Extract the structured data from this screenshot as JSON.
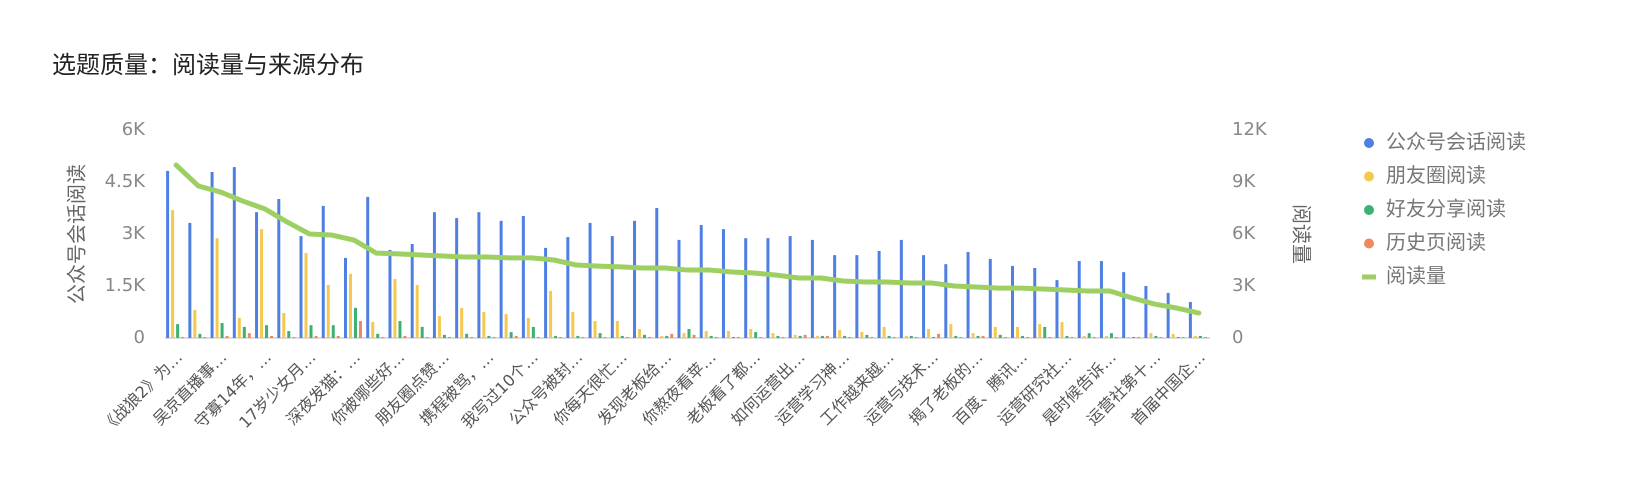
{
  "chart_data": {
    "type": "bar",
    "title": "选题质量：阅读量与来源分布",
    "y_label": "公众号会话阅读",
    "y2_label": "阅读量",
    "categories": [
      "《战狼2》为…",
      null,
      "吴京直播事…",
      null,
      "守寡14年，…",
      null,
      "17岁少女月…",
      null,
      "深夜发猫：…",
      null,
      "你被哪些好…",
      null,
      "朋友圈点赞…",
      null,
      "携程被骂，…",
      null,
      "我写过10个…",
      null,
      "公众号被封…",
      null,
      "你每天很忙…",
      null,
      "发现老板给…",
      null,
      "你熬夜看苹…",
      null,
      "老板看了都…",
      null,
      "如何运营出…",
      null,
      "运营学习神…",
      null,
      "工作越来越…",
      null,
      "运营与技术…",
      null,
      "揭了老板的…",
      null,
      "百度、腾讯…",
      null,
      "运营研究社…",
      null,
      "是时候告诉…",
      null,
      "运营社第十…",
      null,
      "首届中国企…"
    ],
    "ylim": [
      0,
      6000
    ],
    "yticks": [
      {
        "value": 0,
        "label": "0"
      },
      {
        "value": 1500,
        "label": "1.5K"
      },
      {
        "value": 3000,
        "label": "3K"
      },
      {
        "value": 4500,
        "label": "4.5K"
      },
      {
        "value": 6000,
        "label": "6K"
      }
    ],
    "y2lim": [
      0,
      12000
    ],
    "y2ticks": [
      {
        "value": 0,
        "label": "0"
      },
      {
        "value": 3000,
        "label": "3K"
      },
      {
        "value": 6000,
        "label": "6K"
      },
      {
        "value": 9000,
        "label": "9K"
      },
      {
        "value": 12000,
        "label": "12K"
      }
    ],
    "legend": "right",
    "series": [
      {
        "name": "公众号会话阅读",
        "color": "#4f7fe3",
        "type": "bar",
        "values": [
          4820,
          3320,
          4790,
          4930,
          3630,
          4010,
          2940,
          3810,
          2310,
          4070,
          2540,
          2710,
          3630,
          3460,
          3630,
          3380,
          3520,
          2600,
          2910,
          3320,
          2940,
          3380,
          3750,
          2830,
          3260,
          3140,
          2880,
          2880,
          2940,
          2830,
          2390,
          2390,
          2510,
          2830,
          2390,
          2130,
          2480,
          2280,
          2080,
          2020,
          1670,
          2220,
          2220,
          1900,
          1500,
          1300,
          1040
        ]
      },
      {
        "name": "朋友圈阅读",
        "color": "#f4c94e",
        "type": "bar",
        "values": [
          3690,
          810,
          2880,
          580,
          3140,
          720,
          2450,
          1530,
          1850,
          460,
          1700,
          1530,
          630,
          870,
          750,
          690,
          580,
          1360,
          750,
          490,
          490,
          260,
          60,
          140,
          200,
          200,
          260,
          140,
          90,
          60,
          230,
          170,
          320,
          60,
          260,
          400,
          140,
          320,
          320,
          400,
          460,
          60,
          60,
          30,
          140,
          120,
          60
        ]
      },
      {
        "name": "好友分享阅读",
        "color": "#3bb273",
        "type": "bar",
        "values": [
          400,
          120,
          430,
          320,
          370,
          200,
          370,
          370,
          870,
          120,
          490,
          320,
          90,
          120,
          60,
          170,
          320,
          60,
          60,
          140,
          60,
          90,
          60,
          260,
          60,
          30,
          170,
          60,
          60,
          60,
          60,
          90,
          60,
          60,
          30,
          60,
          60,
          90,
          60,
          320,
          60,
          140,
          140,
          30,
          60,
          30,
          60
        ]
      },
      {
        "name": "历史页阅读",
        "color": "#f0895c",
        "type": "bar",
        "values": [
          30,
          30,
          60,
          140,
          60,
          30,
          60,
          60,
          490,
          30,
          60,
          30,
          30,
          30,
          30,
          60,
          30,
          30,
          30,
          30,
          30,
          30,
          120,
          90,
          30,
          30,
          30,
          30,
          90,
          60,
          30,
          30,
          30,
          30,
          120,
          30,
          60,
          30,
          30,
          30,
          30,
          30,
          30,
          30,
          30,
          30,
          30
        ]
      },
      {
        "name": "阅读量",
        "color": "#9dcf62",
        "type": "line",
        "axis": "y2",
        "values": [
          9980,
          8770,
          8420,
          7900,
          7440,
          6690,
          6000,
          5940,
          5650,
          4900,
          4850,
          4790,
          4730,
          4670,
          4670,
          4620,
          4620,
          4500,
          4210,
          4150,
          4100,
          4040,
          4040,
          3920,
          3920,
          3810,
          3750,
          3630,
          3460,
          3460,
          3290,
          3230,
          3230,
          3170,
          3170,
          3000,
          2940,
          2880,
          2880,
          2830,
          2770,
          2710,
          2710,
          2310,
          1960,
          1730,
          1440
        ]
      }
    ]
  }
}
